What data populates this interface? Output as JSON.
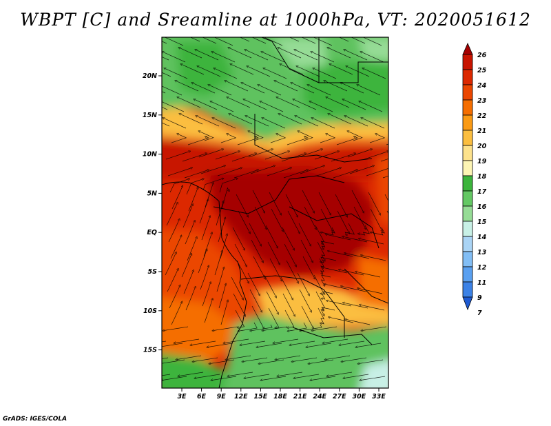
{
  "title": "WBPT [C] and Sreamline at 1000hPa, VT: 2020051612",
  "footer": "GrADS: IGES/COLA",
  "map": {
    "lat_ticks": [
      "20N",
      "15N",
      "10N",
      "5N",
      "EQ",
      "5S",
      "10S",
      "15S"
    ],
    "lon_ticks": [
      "3E",
      "6E",
      "9E",
      "12E",
      "15E",
      "18E",
      "21E",
      "24E",
      "27E",
      "30E",
      "33E"
    ]
  },
  "colorbar": {
    "levels": [
      "26",
      "25",
      "24",
      "23",
      "22",
      "21",
      "20",
      "19",
      "18",
      "17",
      "16",
      "15",
      "14",
      "13",
      "12",
      "11",
      "9",
      "7"
    ],
    "colors": [
      "#a50000",
      "#c81400",
      "#dc2800",
      "#eb4600",
      "#f56e00",
      "#fa9a14",
      "#fbbe40",
      "#fde28c",
      "#fdf5b4",
      "#3cb43c",
      "#64c864",
      "#96dc96",
      "#c8f0e6",
      "#aad4f5",
      "#82bef5",
      "#5aa0f0",
      "#3c82e6",
      "#1e5ad2"
    ]
  }
}
